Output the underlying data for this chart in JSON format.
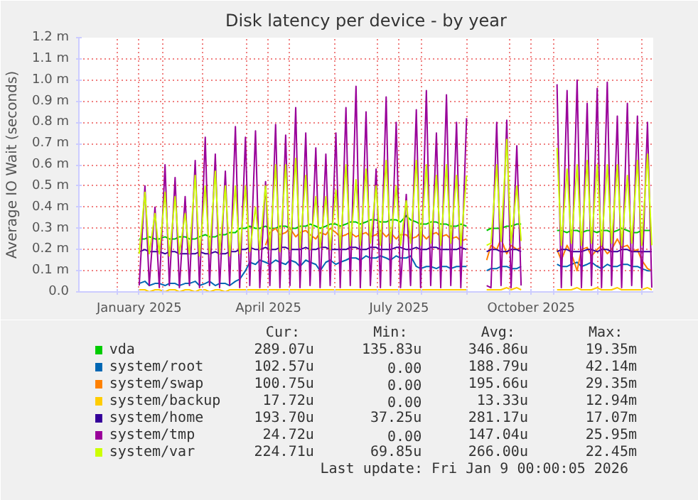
{
  "chart_data": {
    "type": "line",
    "title": "Disk latency per device - by year",
    "ylabel": "Average IO Wait (seconds)",
    "xlim": [
      "2024-12-05",
      "2026-01-09"
    ],
    "xticks": [
      {
        "value": "2025-01-01",
        "label": null
      },
      {
        "value": "2025-01-16",
        "label": "January 2025"
      },
      {
        "value": "2025-02-01",
        "label": null
      },
      {
        "value": "2025-03-01",
        "label": null
      },
      {
        "value": "2025-04-01",
        "label": null
      },
      {
        "value": "2025-04-16",
        "label": "April 2025"
      },
      {
        "value": "2025-05-01",
        "label": null
      },
      {
        "value": "2025-06-01",
        "label": null
      },
      {
        "value": "2025-07-01",
        "label": null
      },
      {
        "value": "2025-07-16",
        "label": "July 2025"
      },
      {
        "value": "2025-08-01",
        "label": null
      },
      {
        "value": "2025-09-01",
        "label": null
      },
      {
        "value": "2025-10-01",
        "label": null
      },
      {
        "value": "2025-10-16",
        "label": "October 2025"
      },
      {
        "value": "2025-11-01",
        "label": null
      },
      {
        "value": "2025-12-01",
        "label": null
      },
      {
        "value": "2026-01-01",
        "label": null
      }
    ],
    "ylim": [
      0,
      1.2
    ],
    "yticks": [
      {
        "value": 0,
        "label": "0.0"
      },
      {
        "value": 0.1,
        "label": "0.1 m"
      },
      {
        "value": 0.2,
        "label": "0.2 m"
      },
      {
        "value": 0.3,
        "label": "0.3 m"
      },
      {
        "value": 0.4,
        "label": "0.4 m"
      },
      {
        "value": 0.5,
        "label": "0.5 m"
      },
      {
        "value": 0.6,
        "label": "0.6 m"
      },
      {
        "value": 0.7,
        "label": "0.7 m"
      },
      {
        "value": 0.8,
        "label": "0.8 m"
      },
      {
        "value": 0.9,
        "label": "0.9 m"
      },
      {
        "value": 1.0,
        "label": "1.0 m"
      },
      {
        "value": 1.1,
        "label": "1.1 m"
      },
      {
        "value": 1.2,
        "label": "1.2 m"
      }
    ],
    "grid": true,
    "legend": "bottom",
    "x": [
      "2025-01-16",
      "2025-01-20",
      "2025-01-23",
      "2025-01-27",
      "2025-01-30",
      "2025-02-03",
      "2025-02-06",
      "2025-02-10",
      "2025-02-13",
      "2025-02-17",
      "2025-02-20",
      "2025-02-24",
      "2025-02-27",
      "2025-03-03",
      "2025-03-06",
      "2025-03-10",
      "2025-03-13",
      "2025-03-17",
      "2025-03-20",
      "2025-03-24",
      "2025-03-27",
      "2025-03-31",
      "2025-04-03",
      "2025-04-07",
      "2025-04-10",
      "2025-04-14",
      "2025-04-17",
      "2025-04-21",
      "2025-04-24",
      "2025-04-28",
      "2025-05-01",
      "2025-05-05",
      "2025-05-08",
      "2025-05-12",
      "2025-05-15",
      "2025-05-19",
      "2025-05-22",
      "2025-05-26",
      "2025-05-29",
      "2025-06-02",
      "2025-06-05",
      "2025-06-09",
      "2025-06-12",
      "2025-06-16",
      "2025-06-19",
      "2025-06-23",
      "2025-06-26",
      "2025-06-30",
      "2025-07-03",
      "2025-07-07",
      "2025-07-10",
      "2025-07-14",
      "2025-07-17",
      "2025-07-21",
      "2025-07-24",
      "2025-07-28",
      "2025-07-31",
      "2025-08-04",
      "2025-08-07",
      "2025-08-11",
      "2025-08-14",
      "2025-08-18",
      "2025-08-21",
      "2025-08-25",
      "2025-08-28",
      "2025-09-01",
      "2025-09-04",
      "2025-09-08",
      "2025-09-11",
      "2025-09-15",
      "2025-09-18",
      "2025-09-22",
      "2025-09-25",
      "2025-09-29",
      "2025-10-02",
      "2025-10-06",
      "2025-10-09",
      "2025-10-13",
      "2025-10-16",
      "2025-10-20",
      "2025-10-23",
      "2025-10-27",
      "2025-10-30",
      "2025-11-03",
      "2025-11-06",
      "2025-11-10",
      "2025-11-13",
      "2025-11-17",
      "2025-11-20",
      "2025-11-24",
      "2025-11-27",
      "2025-12-01",
      "2025-12-04",
      "2025-12-08",
      "2025-12-11",
      "2025-12-15",
      "2025-12-18",
      "2025-12-22",
      "2025-12-25",
      "2025-12-29",
      "2026-01-01",
      "2026-01-05",
      "2026-01-08"
    ],
    "series": [
      {
        "name": "vda",
        "color": "#00cc00",
        "values": [
          0.25,
          0.25,
          0.26,
          0.25,
          0.25,
          0.26,
          0.25,
          0.25,
          0.26,
          0.26,
          0.25,
          0.25,
          0.26,
          0.27,
          0.26,
          0.26,
          0.27,
          0.27,
          0.28,
          0.28,
          0.3,
          0.3,
          0.31,
          0.3,
          0.3,
          0.31,
          0.3,
          0.3,
          0.31,
          0.31,
          0.3,
          0.3,
          0.31,
          0.31,
          0.32,
          0.31,
          0.3,
          0.31,
          0.32,
          0.32,
          0.31,
          0.32,
          0.33,
          0.33,
          0.32,
          0.33,
          0.34,
          0.34,
          0.33,
          0.33,
          0.34,
          0.34,
          0.33,
          0.36,
          0.34,
          0.33,
          0.32,
          0.32,
          0.33,
          0.33,
          0.32,
          0.32,
          0.31,
          0.31,
          0.32,
          0.31,
          null,
          null,
          null,
          0.29,
          0.3,
          0.3,
          0.3,
          0.31,
          0.31,
          0.32,
          0.32,
          null,
          null,
          null,
          null,
          null,
          null,
          0.29,
          0.29,
          0.28,
          0.29,
          0.29,
          0.28,
          0.29,
          0.29,
          0.28,
          0.29,
          0.29,
          0.28,
          0.29,
          0.3,
          0.29,
          0.28,
          0.28,
          0.29,
          0.29,
          0.29
        ]
      },
      {
        "name": "system/root",
        "color": "#0066b3",
        "values": [
          0.04,
          0.05,
          0.03,
          0.04,
          0.04,
          0.03,
          0.04,
          0.04,
          0.03,
          0.04,
          0.04,
          0.05,
          0.03,
          0.04,
          0.05,
          0.03,
          0.04,
          0.04,
          0.03,
          0.05,
          0.06,
          0.1,
          0.14,
          0.13,
          0.15,
          0.14,
          0.13,
          0.15,
          0.14,
          0.13,
          0.15,
          0.14,
          0.12,
          0.15,
          0.14,
          0.13,
          0.1,
          0.14,
          0.15,
          0.13,
          0.14,
          0.15,
          0.16,
          0.16,
          0.15,
          0.17,
          0.16,
          0.16,
          0.17,
          0.16,
          0.15,
          0.17,
          0.16,
          0.16,
          0.17,
          0.12,
          0.11,
          0.12,
          0.12,
          0.11,
          0.12,
          0.12,
          0.11,
          0.12,
          0.12,
          0.12,
          null,
          null,
          null,
          0.1,
          0.11,
          0.11,
          0.12,
          0.12,
          0.11,
          0.11,
          0.12,
          null,
          null,
          null,
          null,
          null,
          null,
          0.13,
          0.12,
          0.12,
          0.13,
          0.14,
          0.12,
          0.13,
          0.14,
          0.12,
          0.11,
          0.13,
          0.12,
          0.12,
          0.13,
          0.13,
          0.12,
          0.12,
          0.11,
          0.1,
          0.1
        ]
      },
      {
        "name": "system/swap",
        "color": "#ff8000",
        "values": [
          null,
          null,
          null,
          null,
          null,
          null,
          null,
          null,
          null,
          null,
          null,
          null,
          null,
          null,
          null,
          null,
          null,
          null,
          null,
          null,
          null,
          null,
          null,
          null,
          null,
          0.22,
          0.28,
          0.3,
          0.27,
          0.28,
          0.3,
          0.26,
          0.28,
          0.29,
          0.27,
          0.25,
          0.28,
          0.27,
          0.3,
          0.28,
          0.26,
          0.27,
          0.28,
          0.26,
          0.27,
          0.28,
          0.26,
          0.27,
          0.29,
          0.26,
          0.28,
          0.25,
          0.27,
          0.27,
          0.25,
          0.26,
          0.28,
          0.25,
          0.27,
          0.28,
          0.26,
          0.27,
          0.25,
          0.26,
          0.24,
          0.25,
          null,
          null,
          null,
          0.15,
          0.22,
          0.2,
          0.25,
          0.18,
          0.22,
          0.2,
          0.21,
          null,
          null,
          null,
          null,
          null,
          null,
          0.2,
          0.15,
          0.22,
          0.18,
          0.1,
          0.2,
          0.21,
          0.17,
          0.2,
          0.22,
          0.18,
          0.2,
          0.25,
          0.21,
          0.22,
          0.19,
          0.2,
          0.15,
          0.11,
          0.1
        ]
      },
      {
        "name": "system/backup",
        "color": "#ffcc00",
        "values": [
          0.01,
          0.01,
          0.0,
          0.01,
          0.01,
          0.0,
          0.01,
          0.01,
          0.0,
          0.01,
          0.01,
          0.0,
          0.01,
          0.01,
          0.0,
          0.01,
          0.01,
          0.0,
          0.01,
          0.01,
          0.01,
          0.01,
          0.01,
          0.01,
          0.01,
          0.01,
          0.01,
          0.01,
          0.01,
          0.01,
          0.01,
          0.01,
          0.01,
          0.01,
          0.01,
          0.01,
          0.01,
          0.01,
          0.01,
          0.01,
          0.01,
          0.01,
          0.01,
          0.01,
          0.01,
          0.01,
          0.01,
          0.01,
          0.01,
          0.01,
          0.01,
          0.01,
          0.01,
          0.01,
          0.01,
          0.01,
          0.01,
          0.01,
          0.01,
          0.01,
          0.01,
          0.01,
          0.01,
          0.01,
          0.01,
          0.01,
          null,
          null,
          null,
          0.01,
          0.01,
          0.01,
          0.01,
          0.02,
          0.01,
          0.02,
          0.01,
          null,
          null,
          null,
          null,
          null,
          null,
          0.01,
          0.01,
          0.01,
          0.01,
          0.02,
          0.01,
          0.01,
          0.01,
          0.02,
          0.01,
          0.01,
          0.01,
          0.02,
          0.01,
          0.01,
          0.01,
          0.01,
          0.01,
          0.02,
          0.01
        ]
      },
      {
        "name": "system/home",
        "color": "#330099",
        "values": [
          0.19,
          0.2,
          0.19,
          0.19,
          0.19,
          0.18,
          0.19,
          0.19,
          0.18,
          0.18,
          0.18,
          0.18,
          0.19,
          0.18,
          0.18,
          0.19,
          0.18,
          0.18,
          0.19,
          0.19,
          0.2,
          0.2,
          0.21,
          0.2,
          0.2,
          0.21,
          0.2,
          0.2,
          0.21,
          0.21,
          0.2,
          0.2,
          0.2,
          0.21,
          0.2,
          0.2,
          0.21,
          0.21,
          0.2,
          0.2,
          0.2,
          0.2,
          0.21,
          0.21,
          0.2,
          0.2,
          0.21,
          0.21,
          0.2,
          0.2,
          0.2,
          0.21,
          0.21,
          0.2,
          0.2,
          0.21,
          0.2,
          0.2,
          0.21,
          0.21,
          0.2,
          0.2,
          0.2,
          0.2,
          0.21,
          0.2,
          null,
          null,
          null,
          0.19,
          0.2,
          0.2,
          0.19,
          0.19,
          0.2,
          0.2,
          0.19,
          null,
          null,
          null,
          null,
          null,
          null,
          0.19,
          0.2,
          0.2,
          0.19,
          0.19,
          0.19,
          0.2,
          0.2,
          0.19,
          0.2,
          0.2,
          0.19,
          0.19,
          0.2,
          0.2,
          0.19,
          0.19,
          0.19,
          0.19,
          0.19
        ]
      },
      {
        "name": "system/tmp",
        "color": "#990099",
        "values": [
          0.03,
          0.5,
          0.03,
          0.4,
          0.02,
          0.6,
          0.03,
          0.54,
          0.02,
          0.45,
          0.03,
          0.62,
          0.02,
          0.73,
          0.03,
          0.65,
          0.02,
          0.57,
          0.03,
          0.78,
          0.02,
          0.73,
          0.03,
          0.76,
          0.02,
          0.52,
          0.03,
          0.79,
          0.02,
          0.74,
          0.03,
          0.87,
          0.02,
          0.75,
          0.03,
          0.68,
          0.02,
          0.65,
          0.03,
          0.75,
          0.02,
          0.87,
          0.03,
          0.97,
          0.02,
          0.85,
          0.03,
          0.58,
          0.02,
          0.92,
          0.03,
          0.8,
          0.02,
          0.46,
          0.03,
          0.86,
          0.02,
          0.95,
          0.03,
          0.75,
          0.02,
          0.93,
          0.03,
          0.8,
          0.02,
          0.82,
          null,
          null,
          null,
          0.03,
          0.02,
          0.8,
          0.03,
          0.81,
          0.02,
          0.69,
          0.03,
          null,
          null,
          null,
          null,
          null,
          null,
          0.98,
          0.02,
          0.95,
          0.03,
          1.0,
          0.02,
          0.89,
          0.03,
          0.96,
          0.02,
          0.99,
          0.03,
          0.83,
          0.02,
          0.89,
          0.03,
          0.83,
          0.02,
          0.8,
          0.02
        ]
      },
      {
        "name": "system/var",
        "color": "#ccff00",
        "values": [
          0.18,
          0.47,
          0.18,
          0.37,
          0.18,
          0.47,
          0.17,
          0.45,
          0.18,
          0.37,
          0.18,
          0.55,
          0.17,
          0.5,
          0.18,
          0.57,
          0.18,
          0.5,
          0.17,
          0.5,
          0.18,
          0.5,
          0.19,
          0.4,
          0.2,
          0.5,
          0.2,
          0.6,
          0.19,
          0.6,
          0.2,
          0.63,
          0.21,
          0.55,
          0.2,
          0.45,
          0.21,
          0.45,
          0.2,
          0.48,
          0.21,
          0.6,
          0.22,
          0.53,
          0.22,
          0.58,
          0.23,
          0.5,
          0.22,
          0.62,
          0.23,
          0.5,
          0.22,
          0.43,
          0.23,
          0.62,
          0.22,
          0.6,
          0.23,
          0.55,
          0.22,
          0.6,
          0.23,
          0.55,
          0.22,
          0.55,
          null,
          null,
          null,
          0.22,
          0.23,
          0.6,
          0.24,
          0.72,
          0.23,
          0.5,
          0.24,
          null,
          null,
          null,
          null,
          null,
          null,
          0.68,
          0.22,
          0.58,
          0.23,
          0.6,
          0.22,
          0.62,
          0.23,
          0.6,
          0.22,
          0.6,
          0.23,
          0.6,
          0.22,
          0.55,
          0.23,
          0.62,
          0.22,
          0.65,
          0.22
        ]
      }
    ],
    "annotations": [
      "Cur:",
      "Min:",
      "Avg:",
      "Max:",
      "289.07u",
      "135.83u",
      "346.86u",
      "19.35m",
      "102.57u",
      "0.00",
      "188.79u",
      "42.14m",
      "100.75u",
      "0.00",
      "195.66u",
      "29.35m",
      "17.72u",
      "0.00",
      "13.33u",
      "12.94m",
      "193.70u",
      "37.25u",
      "281.17u",
      "17.07m",
      "24.72u",
      "0.00",
      "147.04u",
      "25.95m",
      "224.71u",
      "69.85u",
      "266.00u",
      "22.45m",
      "Last update: Fri Jan  9 00:00:05 2026"
    ]
  }
}
